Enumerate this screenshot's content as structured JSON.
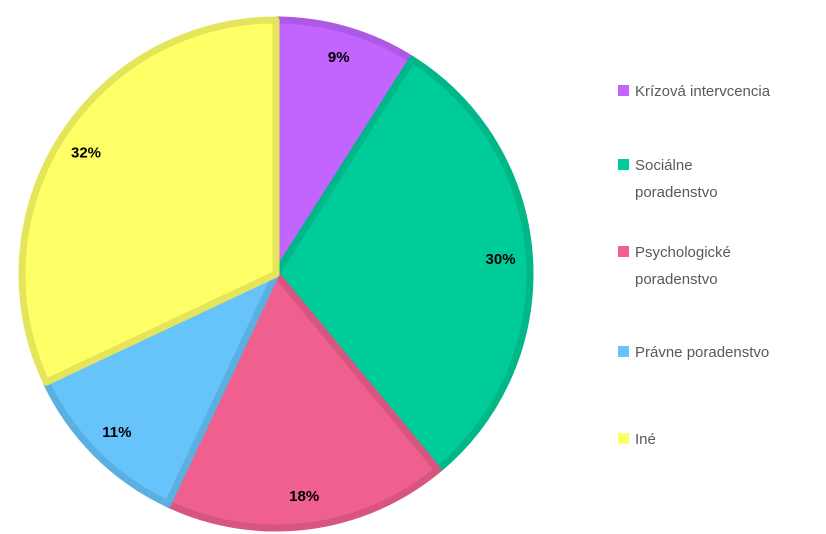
{
  "chart_data": {
    "type": "pie",
    "categories": [
      "Krízová intervcencia",
      "Sociálne poradenstvo",
      "Psychologické poradenstvo",
      "Právne poradenstvo",
      "Iné"
    ],
    "values": [
      9,
      30,
      18,
      11,
      32
    ],
    "value_labels": [
      "9%",
      "30%",
      "18%",
      "11%",
      "32%"
    ],
    "colors": [
      "#c264fe",
      "#00cc99",
      "#f0608f",
      "#66c4fb",
      "#ffff66"
    ],
    "legend": "right"
  }
}
